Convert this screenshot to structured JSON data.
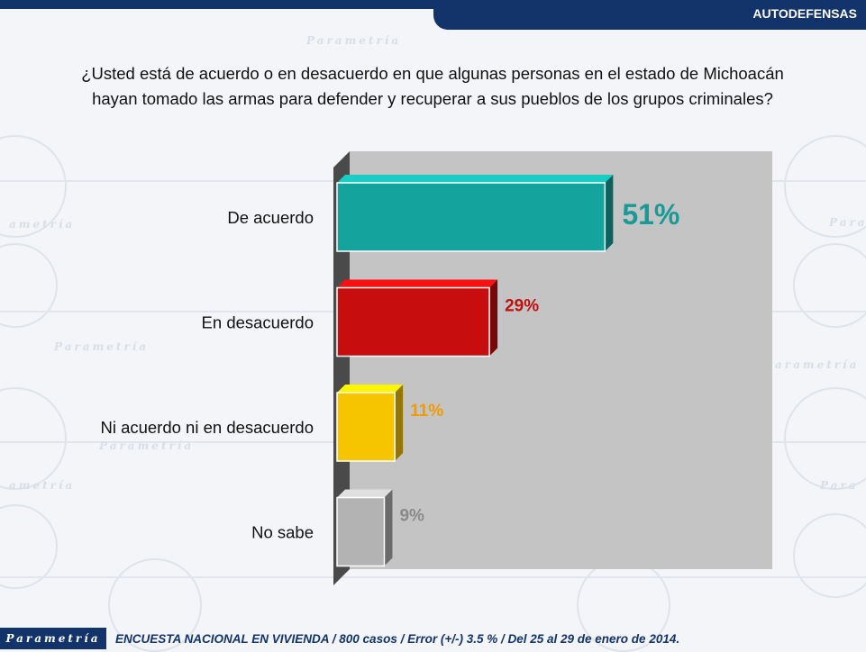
{
  "header": {
    "section_title": "AUTODEFENSAS"
  },
  "question": {
    "line1": "¿Usted está de acuerdo o en desacuerdo en que algunas personas en el estado de Michoacán",
    "line2": "hayan tomado las armas para defender y recuperar a sus pueblos de los grupos criminales?"
  },
  "chart_data": {
    "type": "bar",
    "orientation": "horizontal",
    "categories": [
      "De acuerdo",
      "En desacuerdo",
      "Ni acuerdo ni en desacuerdo",
      "No sabe"
    ],
    "values": [
      51,
      29,
      11,
      9
    ],
    "value_labels": [
      "51%",
      "29%",
      "11%",
      "9%"
    ],
    "colors": [
      "#14a39d",
      "#c70d0d",
      "#f7c400",
      "#b3b3b3"
    ],
    "label_colors": [
      "#1a9a96",
      "#c01010",
      "#f39a00",
      "#8a8a8a"
    ],
    "xlim": [
      0,
      80
    ],
    "grid": false
  },
  "footer": {
    "logo": "Parametría",
    "text": "ENCUESTA NACIONAL EN VIVIENDA / 800 casos / Error (+/-) 3.5 % / Del 25 al 29 de enero de 2014."
  }
}
